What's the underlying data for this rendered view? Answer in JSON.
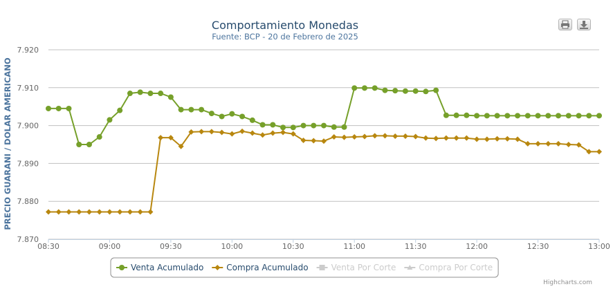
{
  "credits": "Highcharts.com",
  "export": {
    "print_icon": "printer-icon",
    "download_icon": "download-icon"
  },
  "chart_data": {
    "type": "line",
    "title": "Comportamiento Monedas",
    "subtitle": "Fuente: BCP - 20 de Febrero de 2025",
    "xlabel": "",
    "ylabel": "PRECIO GUARANI / DOLAR AMERICANO",
    "ylim": [
      7.87,
      7.92
    ],
    "yticks": [
      "7.870",
      "7.880",
      "7.890",
      "7.900",
      "7.910",
      "7.920"
    ],
    "ytick_values": [
      7.87,
      7.88,
      7.89,
      7.9,
      7.91,
      7.92
    ],
    "xlim": [
      "08:30",
      "13:00"
    ],
    "xticks": [
      "08:30",
      "09:00",
      "09:30",
      "10:00",
      "10:30",
      "11:00",
      "11:30",
      "12:00",
      "12:30",
      "13:00"
    ],
    "grid": true,
    "legend_position": "bottom",
    "series": [
      {
        "name": "Venta Acumulado",
        "color": "#76a02a",
        "marker": "circle",
        "visible": true,
        "points": [
          [
            "08:30",
            7.9045
          ],
          [
            "08:35",
            7.9045
          ],
          [
            "08:40",
            7.9045
          ],
          [
            "08:45",
            7.895
          ],
          [
            "08:50",
            7.895
          ],
          [
            "08:55",
            7.897
          ],
          [
            "09:00",
            7.9015
          ],
          [
            "09:05",
            7.904
          ],
          [
            "09:10",
            7.9085
          ],
          [
            "09:15",
            7.9088
          ],
          [
            "09:20",
            7.9085
          ],
          [
            "09:25",
            7.9085
          ],
          [
            "09:30",
            7.9075
          ],
          [
            "09:35",
            7.9042
          ],
          [
            "09:40",
            7.9042
          ],
          [
            "09:45",
            7.9042
          ],
          [
            "09:50",
            7.9032
          ],
          [
            "09:55",
            7.9024
          ],
          [
            "10:00",
            7.9031
          ],
          [
            "10:05",
            7.9024
          ],
          [
            "10:10",
            7.9014
          ],
          [
            "10:15",
            7.9002
          ],
          [
            "10:20",
            7.9002
          ],
          [
            "10:25",
            7.8995
          ],
          [
            "10:30",
            7.8995
          ],
          [
            "10:35",
            7.9
          ],
          [
            "10:40",
            7.9
          ],
          [
            "10:45",
            7.9
          ],
          [
            "10:50",
            7.8996
          ],
          [
            "10:55",
            7.8996
          ],
          [
            "11:00",
            7.9099
          ],
          [
            "11:05",
            7.9099
          ],
          [
            "11:10",
            7.9099
          ],
          [
            "11:15",
            7.9093
          ],
          [
            "11:20",
            7.9092
          ],
          [
            "11:25",
            7.9091
          ],
          [
            "11:30",
            7.9091
          ],
          [
            "11:35",
            7.909
          ],
          [
            "11:40",
            7.9093
          ],
          [
            "11:45",
            7.9027
          ],
          [
            "11:50",
            7.9027
          ],
          [
            "11:55",
            7.9027
          ],
          [
            "12:00",
            7.9026
          ],
          [
            "12:05",
            7.9026
          ],
          [
            "12:10",
            7.9026
          ],
          [
            "12:15",
            7.9026
          ],
          [
            "12:20",
            7.9026
          ],
          [
            "12:25",
            7.9026
          ],
          [
            "12:30",
            7.9026
          ],
          [
            "12:35",
            7.9026
          ],
          [
            "12:40",
            7.9026
          ],
          [
            "12:45",
            7.9026
          ],
          [
            "12:50",
            7.9026
          ],
          [
            "12:55",
            7.9026
          ],
          [
            "13:00",
            7.9026
          ]
        ]
      },
      {
        "name": "Compra Acumulado",
        "color": "#b8870f",
        "marker": "diamond",
        "visible": true,
        "points": [
          [
            "08:30",
            7.8772
          ],
          [
            "08:35",
            7.8772
          ],
          [
            "08:40",
            7.8772
          ],
          [
            "08:45",
            7.8772
          ],
          [
            "08:50",
            7.8772
          ],
          [
            "08:55",
            7.8772
          ],
          [
            "09:00",
            7.8772
          ],
          [
            "09:05",
            7.8772
          ],
          [
            "09:10",
            7.8772
          ],
          [
            "09:15",
            7.8772
          ],
          [
            "09:20",
            7.8772
          ],
          [
            "09:25",
            7.8968
          ],
          [
            "09:30",
            7.8968
          ],
          [
            "09:35",
            7.8945
          ],
          [
            "09:40",
            7.8983
          ],
          [
            "09:45",
            7.8984
          ],
          [
            "09:50",
            7.8984
          ],
          [
            "09:55",
            7.8982
          ],
          [
            "10:00",
            7.8978
          ],
          [
            "10:05",
            7.8985
          ],
          [
            "10:10",
            7.898
          ],
          [
            "10:15",
            7.8975
          ],
          [
            "10:20",
            7.898
          ],
          [
            "10:25",
            7.8982
          ],
          [
            "10:30",
            7.8978
          ],
          [
            "10:35",
            7.8961
          ],
          [
            "10:40",
            7.896
          ],
          [
            "10:45",
            7.8959
          ],
          [
            "10:50",
            7.897
          ],
          [
            "10:55",
            7.8969
          ],
          [
            "11:00",
            7.897
          ],
          [
            "11:05",
            7.8971
          ],
          [
            "11:10",
            7.8973
          ],
          [
            "11:15",
            7.8973
          ],
          [
            "11:20",
            7.8972
          ],
          [
            "11:25",
            7.8972
          ],
          [
            "11:30",
            7.8971
          ],
          [
            "11:35",
            7.8967
          ],
          [
            "11:40",
            7.8966
          ],
          [
            "11:45",
            7.8967
          ],
          [
            "11:50",
            7.8967
          ],
          [
            "11:55",
            7.8967
          ],
          [
            "12:00",
            7.8964
          ],
          [
            "12:05",
            7.8964
          ],
          [
            "12:10",
            7.8965
          ],
          [
            "12:15",
            7.8965
          ],
          [
            "12:20",
            7.8964
          ],
          [
            "12:25",
            7.8952
          ],
          [
            "12:30",
            7.8952
          ],
          [
            "12:35",
            7.8952
          ],
          [
            "12:40",
            7.8952
          ],
          [
            "12:45",
            7.895
          ],
          [
            "12:50",
            7.8949
          ],
          [
            "12:55",
            7.8931
          ],
          [
            "13:00",
            7.8931
          ]
        ]
      },
      {
        "name": "Venta Por Corte",
        "color": "#cccccc",
        "marker": "square",
        "visible": false,
        "points": []
      },
      {
        "name": "Compra Por Corte",
        "color": "#cccccc",
        "marker": "triangle",
        "visible": false,
        "points": []
      }
    ]
  }
}
